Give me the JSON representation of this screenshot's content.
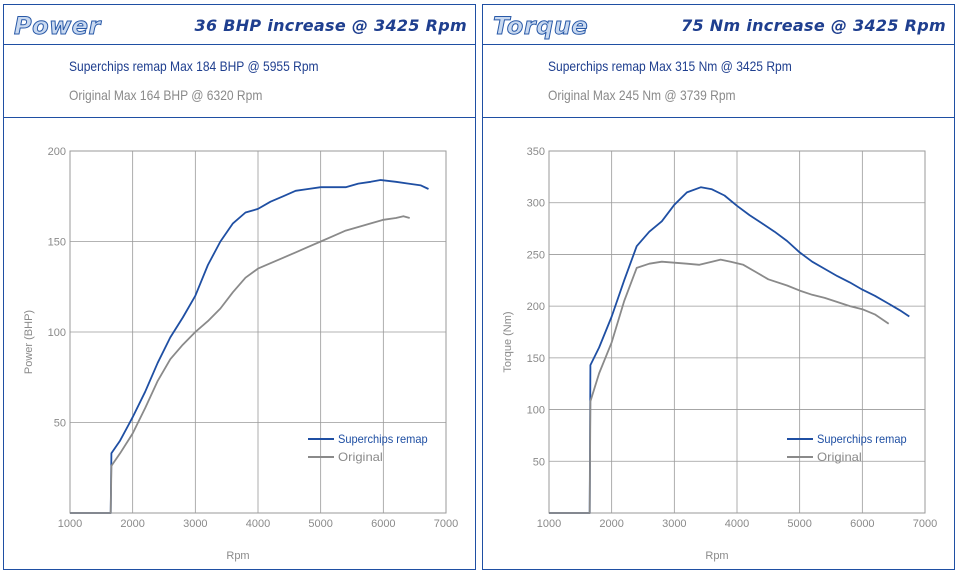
{
  "colors": {
    "remap": "#1f4fa3",
    "original": "#8a8a8a",
    "grid": "#9a9a9a",
    "border": "#1f4fa3"
  },
  "panels": [
    {
      "title": "Power",
      "increase": "36 BHP increase @ 3425 Rpm",
      "remap_summary": "Superchips remap Max 184 BHP @ 5955 Rpm",
      "original_summary": "Original Max 164 BHP @ 6320 Rpm"
    },
    {
      "title": "Torque",
      "increase": "75 Nm increase @ 3425 Rpm",
      "remap_summary": "Superchips remap Max 315 Nm @ 3425 Rpm",
      "original_summary": "Original Max 245 Nm @ 3739 Rpm"
    }
  ],
  "chart_data": [
    {
      "type": "line",
      "title": "Power",
      "xlabel": "Rpm",
      "ylabel": "Power (BHP)",
      "xlim": [
        1000,
        7000
      ],
      "ylim": [
        0,
        200
      ],
      "x_ticks": [
        1000,
        2000,
        3000,
        4000,
        5000,
        6000,
        7000
      ],
      "y_ticks": [
        50,
        100,
        150,
        200
      ],
      "grid": true,
      "legend": "bottom-right",
      "series": [
        {
          "name": "Superchips remap",
          "color": "#1f4fa3",
          "x": [
            1000,
            1650,
            1660,
            1800,
            2000,
            2200,
            2400,
            2600,
            2800,
            3000,
            3200,
            3400,
            3600,
            3800,
            4000,
            4200,
            4400,
            4600,
            4800,
            5000,
            5200,
            5400,
            5600,
            5800,
            5955,
            6200,
            6400,
            6600,
            6720
          ],
          "y": [
            0,
            0,
            33,
            40,
            53,
            67,
            83,
            97,
            108,
            120,
            137,
            150,
            160,
            166,
            168,
            172,
            175,
            178,
            179,
            180,
            180,
            180,
            182,
            183,
            184,
            183,
            182,
            181,
            179
          ]
        },
        {
          "name": "Original",
          "color": "#8a8a8a",
          "x": [
            1000,
            1650,
            1660,
            1800,
            2000,
            2200,
            2400,
            2600,
            2800,
            3000,
            3200,
            3400,
            3600,
            3800,
            4000,
            4200,
            4400,
            4600,
            4800,
            5000,
            5200,
            5400,
            5600,
            5800,
            6000,
            6200,
            6320,
            6420
          ],
          "y": [
            0,
            0,
            26,
            33,
            44,
            58,
            73,
            85,
            93,
            100,
            106,
            113,
            122,
            130,
            135,
            138,
            141,
            144,
            147,
            150,
            153,
            156,
            158,
            160,
            162,
            163,
            164,
            163
          ]
        }
      ]
    },
    {
      "type": "line",
      "title": "Torque",
      "xlabel": "Rpm",
      "ylabel": "Torque (Nm)",
      "xlim": [
        1000,
        7000
      ],
      "ylim": [
        0,
        350
      ],
      "x_ticks": [
        1000,
        2000,
        3000,
        4000,
        5000,
        6000,
        7000
      ],
      "y_ticks": [
        50,
        100,
        150,
        200,
        250,
        300,
        350
      ],
      "grid": true,
      "legend": "bottom-right",
      "series": [
        {
          "name": "Superchips remap",
          "color": "#1f4fa3",
          "x": [
            1000,
            1650,
            1660,
            1800,
            2000,
            2200,
            2400,
            2600,
            2800,
            3000,
            3200,
            3425,
            3600,
            3800,
            4000,
            4200,
            4400,
            4600,
            4800,
            5000,
            5200,
            5400,
            5600,
            5800,
            6000,
            6200,
            6400,
            6600,
            6750
          ],
          "y": [
            0,
            0,
            143,
            160,
            190,
            225,
            258,
            272,
            282,
            298,
            310,
            315,
            313,
            307,
            297,
            288,
            280,
            272,
            263,
            252,
            243,
            236,
            229,
            223,
            216,
            210,
            203,
            196,
            190
          ]
        },
        {
          "name": "Original",
          "color": "#8a8a8a",
          "x": [
            1000,
            1650,
            1660,
            1800,
            2000,
            2200,
            2400,
            2600,
            2800,
            3000,
            3200,
            3400,
            3600,
            3739,
            3900,
            4100,
            4300,
            4500,
            4800,
            5000,
            5200,
            5400,
            5600,
            5800,
            6000,
            6200,
            6420
          ],
          "y": [
            0,
            0,
            108,
            135,
            165,
            205,
            237,
            241,
            243,
            242,
            241,
            240,
            243,
            245,
            243,
            240,
            233,
            226,
            220,
            215,
            211,
            208,
            204,
            200,
            197,
            192,
            183
          ]
        }
      ]
    }
  ]
}
